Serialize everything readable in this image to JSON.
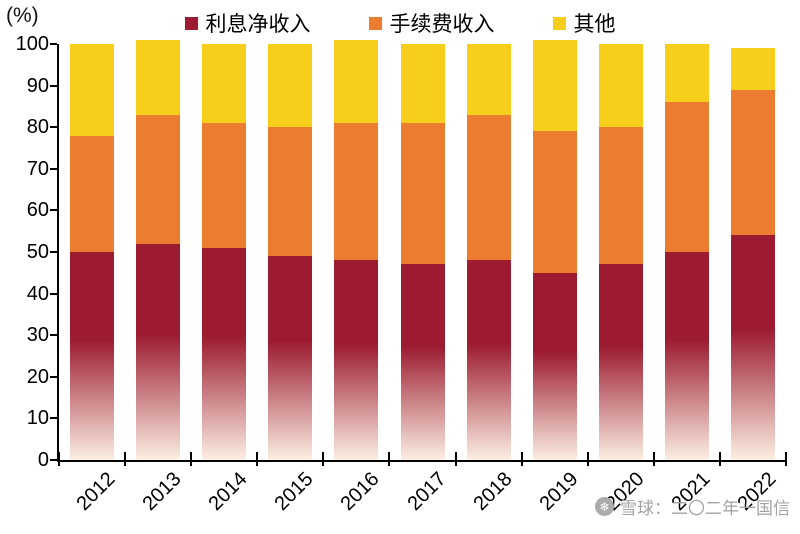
{
  "chart_data": {
    "type": "bar",
    "stacked": true,
    "title": "",
    "ylabel": "(%)",
    "xlabel": "",
    "ylim": [
      0,
      100
    ],
    "yticks": [
      0,
      10,
      20,
      30,
      40,
      50,
      60,
      70,
      80,
      90,
      100
    ],
    "grid": false,
    "legend_position": "top",
    "bar_fade_bottom": "#FCEFE2",
    "categories": [
      "2012",
      "2013",
      "2014",
      "2015",
      "2016",
      "2017",
      "2018",
      "2019",
      "2020",
      "2021",
      "2022"
    ],
    "series": [
      {
        "name": "利息净收入",
        "color": "#9C1B30",
        "values": [
          50,
          52,
          51,
          49,
          48,
          47,
          48,
          45,
          47,
          50,
          54
        ]
      },
      {
        "name": "手续费收入",
        "color": "#EC7C2F",
        "values": [
          28,
          31,
          30,
          31,
          33,
          34,
          35,
          34,
          33,
          36,
          35
        ]
      },
      {
        "name": "其他",
        "color": "#F8CE1C",
        "values": [
          22,
          18,
          19,
          20,
          20,
          19,
          17,
          22,
          20,
          14,
          10
        ]
      }
    ]
  },
  "watermark": {
    "site": "雪球",
    "text": "雪球：二〇二年一国信"
  }
}
